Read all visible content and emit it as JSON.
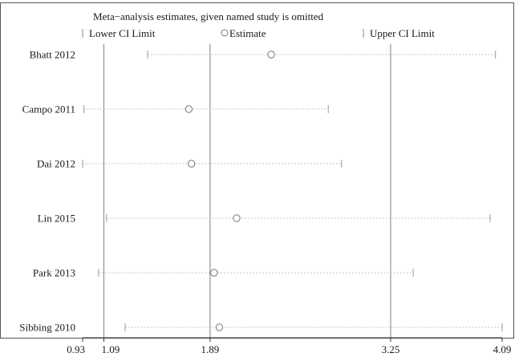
{
  "chart_data": {
    "type": "scatter",
    "title": "Meta−analysis estimates, given named study is omitted",
    "legend": {
      "placement": "top",
      "entries": [
        {
          "symbol": "|",
          "label": "Lower CI Limit"
        },
        {
          "symbol": "o",
          "label": "Estimate"
        },
        {
          "symbol": "|",
          "label": "Upper CI Limit"
        }
      ]
    },
    "studies": [
      "Bhatt 2012",
      "Campo 2011",
      "Dai 2012",
      "Lin 2015",
      "Park 2013",
      "Sibbing 2010"
    ],
    "lower": [
      1.42,
      0.94,
      0.93,
      1.11,
      1.05,
      1.25
    ],
    "estimate": [
      2.35,
      1.73,
      1.75,
      2.09,
      1.92,
      1.96
    ],
    "upper": [
      4.04,
      2.78,
      2.88,
      4.0,
      3.42,
      4.09
    ],
    "reference_lines": [
      1.09,
      1.89,
      3.25
    ],
    "xlim": [
      0.93,
      4.09
    ],
    "xticks": [
      {
        "value": 0.93,
        "label": "0.93"
      },
      {
        "value": 1.09,
        "label": "1.09"
      },
      {
        "value": 1.89,
        "label": "1.89"
      },
      {
        "value": 3.25,
        "label": "3.25"
      },
      {
        "value": 4.09,
        "label": "4.09"
      }
    ],
    "grid": false
  }
}
